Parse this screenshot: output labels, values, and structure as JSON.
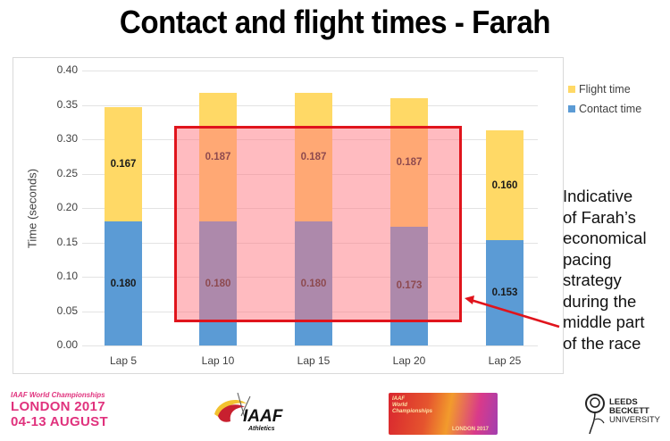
{
  "title": "Contact and flight times - Farah",
  "chart_data": {
    "type": "bar",
    "stacked": true,
    "title": "Contact and flight times - Farah",
    "xlabel": "",
    "ylabel": "Time (seconds)",
    "ylim": [
      0,
      0.4
    ],
    "yticks": [
      "0.00",
      "0.05",
      "0.10",
      "0.15",
      "0.20",
      "0.25",
      "0.30",
      "0.35",
      "0.40"
    ],
    "grid": true,
    "legend_position": "upper right",
    "categories": [
      "Lap 5",
      "Lap 10",
      "Lap 15",
      "Lap 20",
      "Lap 25"
    ],
    "series": [
      {
        "name": "Contact time",
        "color": "#5b9bd5",
        "values": [
          0.18,
          0.18,
          0.18,
          0.173,
          0.153
        ],
        "labels": [
          "0.180",
          "0.180",
          "0.180",
          "0.173",
          "0.153"
        ]
      },
      {
        "name": "Flight time",
        "color": "#ffd966",
        "values": [
          0.167,
          0.187,
          0.187,
          0.187,
          0.16
        ],
        "labels": [
          "0.167",
          "0.187",
          "0.187",
          "0.187",
          "0.160"
        ]
      }
    ],
    "highlight": {
      "categories": [
        "Lap 10",
        "Lap 15",
        "Lap 20"
      ],
      "color": "#e0141c"
    },
    "annotation": "Indicative of Farah's economical pacing strategy during the middle part of the race"
  },
  "legend": {
    "flight": "Flight time",
    "contact": "Contact time"
  },
  "annotation_lines": [
    "Indicative",
    "of Farah’s",
    "economical",
    "pacing",
    "strategy",
    "during the",
    "middle part",
    "of the race"
  ],
  "logos": {
    "london": {
      "line1": "IAAF World Championships",
      "line2": "LONDON 2017",
      "line3": "04-13 AUGUST"
    },
    "iaaf": {
      "name": "IAAF",
      "sub": "Athletics"
    },
    "wc": {
      "line1": "IAAF",
      "line2": "World",
      "line3": "Championships",
      "bottom": "LONDON 2017"
    },
    "leeds": {
      "line1": "LEEDS",
      "line2": "BECKETT",
      "line3": "UNIVERSITY"
    }
  }
}
